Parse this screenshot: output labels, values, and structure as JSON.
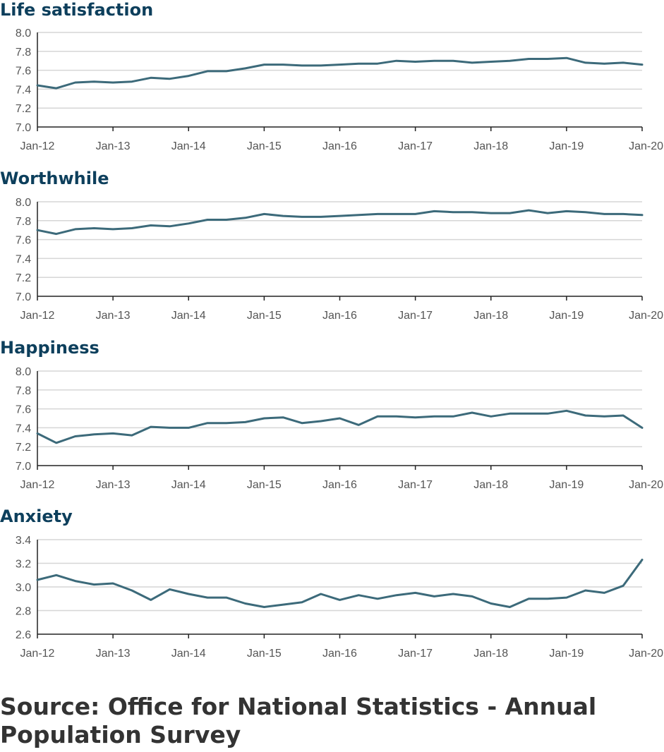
{
  "source": "Source: Office for National Statistics - Annual Population Survey",
  "colors": {
    "line": "#3c6a7a",
    "title": "#0d3f5c",
    "grid": "#d6d6d6",
    "axis": "#222222",
    "tick_text": "#555555"
  },
  "chart_data": [
    {
      "type": "line",
      "title": "Life satisfaction",
      "x_ticks": [
        "Jan-12",
        "Jan-13",
        "Jan-14",
        "Jan-15",
        "Jan-16",
        "Jan-17",
        "Jan-18",
        "Jan-19",
        "Jan-20"
      ],
      "y_ticks": [
        "7.0",
        "7.2",
        "7.4",
        "7.6",
        "7.8",
        "8.0"
      ],
      "ylim": [
        7.0,
        8.0
      ],
      "xlim": [
        "Jan-12",
        "Jan-20"
      ],
      "grid": true,
      "series": [
        {
          "values": [
            7.44,
            7.41,
            7.47,
            7.48,
            7.47,
            7.48,
            7.52,
            7.51,
            7.54,
            7.59,
            7.59,
            7.62,
            7.66,
            7.66,
            7.65,
            7.65,
            7.66,
            7.67,
            7.67,
            7.7,
            7.69,
            7.7,
            7.7,
            7.68,
            7.69,
            7.7,
            7.72,
            7.72,
            7.73,
            7.68,
            7.67,
            7.68,
            7.66
          ]
        }
      ]
    },
    {
      "type": "line",
      "title": "Worthwhile",
      "x_ticks": [
        "Jan-12",
        "Jan-13",
        "Jan-14",
        "Jan-15",
        "Jan-16",
        "Jan-17",
        "Jan-18",
        "Jan-19",
        "Jan-20"
      ],
      "y_ticks": [
        "7.0",
        "7.2",
        "7.4",
        "7.6",
        "7.8",
        "8.0"
      ],
      "ylim": [
        7.0,
        8.0
      ],
      "xlim": [
        "Jan-12",
        "Jan-20"
      ],
      "grid": true,
      "series": [
        {
          "values": [
            7.7,
            7.66,
            7.71,
            7.72,
            7.71,
            7.72,
            7.75,
            7.74,
            7.77,
            7.81,
            7.81,
            7.83,
            7.87,
            7.85,
            7.84,
            7.84,
            7.85,
            7.86,
            7.87,
            7.87,
            7.87,
            7.9,
            7.89,
            7.89,
            7.88,
            7.88,
            7.91,
            7.88,
            7.9,
            7.89,
            7.87,
            7.87,
            7.86
          ]
        }
      ]
    },
    {
      "type": "line",
      "title": "Happiness",
      "x_ticks": [
        "Jan-12",
        "Jan-13",
        "Jan-14",
        "Jan-15",
        "Jan-16",
        "Jan-17",
        "Jan-18",
        "Jan-19",
        "Jan-20"
      ],
      "y_ticks": [
        "7.0",
        "7.2",
        "7.4",
        "7.6",
        "7.8",
        "8.0"
      ],
      "ylim": [
        7.0,
        8.0
      ],
      "xlim": [
        "Jan-12",
        "Jan-20"
      ],
      "grid": true,
      "series": [
        {
          "values": [
            7.34,
            7.24,
            7.31,
            7.33,
            7.34,
            7.32,
            7.41,
            7.4,
            7.4,
            7.45,
            7.45,
            7.46,
            7.5,
            7.51,
            7.45,
            7.47,
            7.5,
            7.43,
            7.52,
            7.52,
            7.51,
            7.52,
            7.52,
            7.56,
            7.52,
            7.55,
            7.55,
            7.55,
            7.58,
            7.53,
            7.52,
            7.53,
            7.4
          ]
        }
      ]
    },
    {
      "type": "line",
      "title": "Anxiety",
      "x_ticks": [
        "Jan-12",
        "Jan-13",
        "Jan-14",
        "Jan-15",
        "Jan-16",
        "Jan-17",
        "Jan-18",
        "Jan-19",
        "Jan-20"
      ],
      "y_ticks": [
        "2.6",
        "2.8",
        "3.0",
        "3.2",
        "3.4"
      ],
      "ylim": [
        2.6,
        3.4
      ],
      "xlim": [
        "Jan-12",
        "Jan-20"
      ],
      "grid": true,
      "series": [
        {
          "values": [
            3.06,
            3.1,
            3.05,
            3.02,
            3.03,
            2.97,
            2.89,
            2.98,
            2.94,
            2.91,
            2.91,
            2.86,
            2.83,
            2.85,
            2.87,
            2.94,
            2.89,
            2.93,
            2.9,
            2.93,
            2.95,
            2.92,
            2.94,
            2.92,
            2.86,
            2.83,
            2.9,
            2.9,
            2.91,
            2.97,
            2.95,
            3.01,
            3.23
          ]
        }
      ]
    }
  ]
}
